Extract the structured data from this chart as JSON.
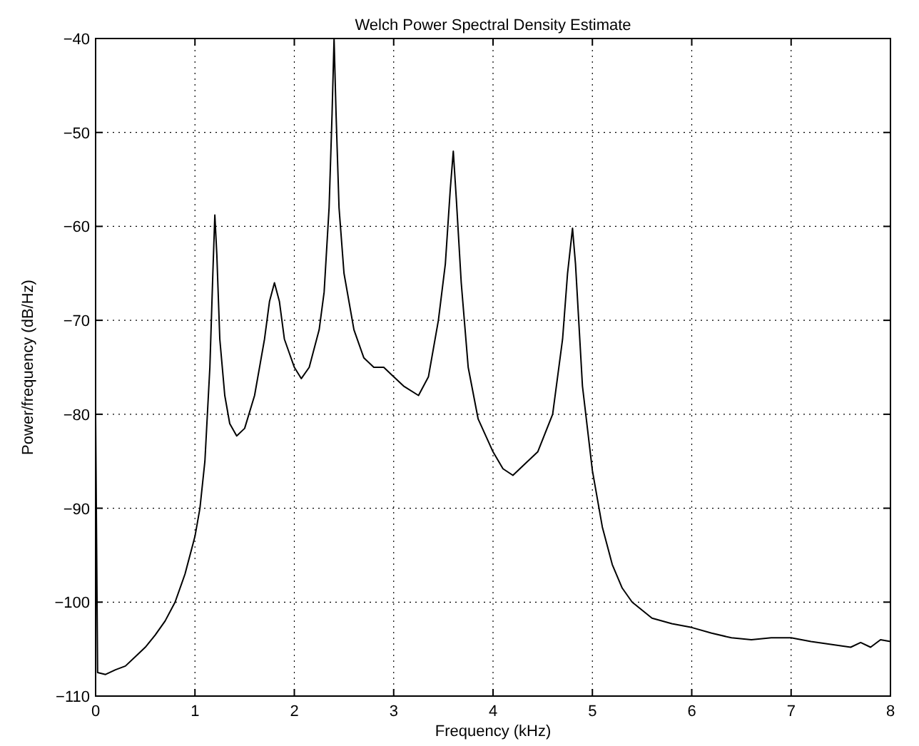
{
  "chart_data": {
    "type": "line",
    "title": "Welch Power Spectral Density Estimate",
    "xlabel": "Frequency (kHz)",
    "ylabel": "Power/frequency (dB/Hz)",
    "xlim": [
      0,
      8
    ],
    "xticks": [
      0,
      1,
      2,
      3,
      4,
      5,
      6,
      7,
      8
    ],
    "ylim": [
      -110,
      -40
    ],
    "yticks": [
      -110,
      -100,
      -90,
      -80,
      -70,
      -60,
      -50,
      -40
    ],
    "grid": true,
    "line_style": "solid",
    "marker": "none",
    "series": [
      {
        "color": "#000000",
        "x": [
          0,
          0.02,
          0.1,
          0.2,
          0.3,
          0.4,
          0.5,
          0.6,
          0.7,
          0.8,
          0.9,
          1.0,
          1.05,
          1.1,
          1.15,
          1.18,
          1.2,
          1.22,
          1.25,
          1.3,
          1.35,
          1.42,
          1.5,
          1.6,
          1.7,
          1.75,
          1.8,
          1.85,
          1.9,
          1.95,
          2.0,
          2.07,
          2.15,
          2.25,
          2.3,
          2.35,
          2.38,
          2.4,
          2.42,
          2.45,
          2.5,
          2.6,
          2.7,
          2.8,
          2.9,
          3.0,
          3.1,
          3.25,
          3.35,
          3.45,
          3.52,
          3.57,
          3.6,
          3.63,
          3.68,
          3.75,
          3.85,
          4.0,
          4.1,
          4.2,
          4.3,
          4.45,
          4.6,
          4.7,
          4.75,
          4.8,
          4.83,
          4.9,
          5.0,
          5.1,
          5.2,
          5.3,
          5.4,
          5.6,
          5.8,
          6.0,
          6.2,
          6.4,
          6.6,
          6.8,
          7.0,
          7.2,
          7.4,
          7.6,
          7.7,
          7.8,
          7.9,
          8.0
        ],
        "values": [
          -80,
          -107.5,
          -107.7,
          -107.2,
          -106.8,
          -105.8,
          -104.8,
          -103.5,
          -102,
          -100,
          -97,
          -93,
          -90,
          -85,
          -75,
          -65,
          -58.8,
          -63,
          -72,
          -78,
          -81,
          -82.3,
          -81.5,
          -78,
          -72,
          -68,
          -66,
          -68,
          -72,
          -73.5,
          -75,
          -76.2,
          -75,
          -71,
          -67,
          -58,
          -48,
          -40,
          -48,
          -58,
          -65,
          -71,
          -74,
          -75,
          -75,
          -76,
          -77,
          -78,
          -76,
          -70,
          -64,
          -56,
          -52,
          -57,
          -66,
          -75,
          -80.5,
          -84,
          -85.8,
          -86.5,
          -85.5,
          -84,
          -80,
          -72,
          -65,
          -60.2,
          -64,
          -77,
          -86,
          -92,
          -96,
          -98.5,
          -100,
          -101.7,
          -102.3,
          -102.7,
          -103.3,
          -103.8,
          -104,
          -103.8,
          -103.8,
          -104.2,
          -104.5,
          -104.8,
          -104.3,
          -104.8,
          -104,
          -104.2
        ]
      }
    ]
  }
}
